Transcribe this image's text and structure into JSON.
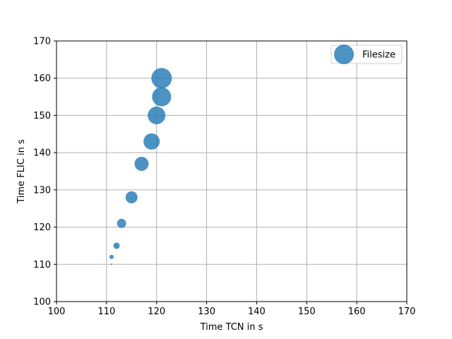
{
  "chart_data": {
    "type": "scatter",
    "xlabel": "Time TCN in s",
    "ylabel": "Time FLIC in s",
    "xlim": [
      100,
      170
    ],
    "ylim": [
      100,
      170
    ],
    "xticks": [
      100,
      110,
      120,
      130,
      140,
      150,
      160,
      170
    ],
    "yticks": [
      100,
      110,
      120,
      130,
      140,
      150,
      160,
      170
    ],
    "grid": true,
    "legend": {
      "position": "top-right",
      "entries": [
        "Filesize"
      ]
    },
    "color": "#1f77b4",
    "series": [
      {
        "name": "Filesize",
        "x": [
          111,
          111,
          112,
          113,
          115,
          117,
          119,
          120,
          121,
          121
        ],
        "y": [
          110,
          112,
          115,
          121,
          128,
          137,
          143,
          150,
          155,
          160
        ],
        "size": [
          1,
          5,
          8,
          12,
          16,
          19,
          22,
          24,
          26,
          28
        ]
      }
    ]
  }
}
